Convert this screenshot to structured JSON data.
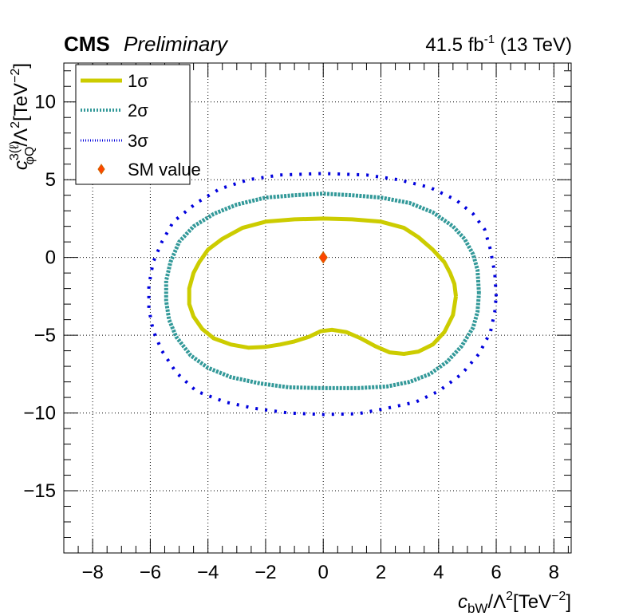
{
  "header": {
    "experiment": "CMS",
    "status": "Preliminary",
    "lumi_value": "41.5 fb",
    "lumi_exp": "-1",
    "energy": " (13 TeV)"
  },
  "axes": {
    "x": {
      "c": "c",
      "sub": "bW",
      "mid": "/Λ",
      "sup2": "2",
      "unit": "[TeV",
      "unit_exp": "−2",
      "close": "]"
    },
    "y": {
      "c": "c",
      "sup": "3(ℓ)",
      "sub": "φQ",
      "mid": "/Λ",
      "sup2": "2",
      "unit": "[TeV",
      "unit_exp": "−2",
      "close": "]"
    }
  },
  "legend": {
    "entries": [
      {
        "label": "1σ",
        "color": "#cccc00"
      },
      {
        "label": "2σ",
        "color": "#339999"
      },
      {
        "label": "3σ",
        "color": "#0000dd"
      },
      {
        "label": "SM value",
        "color": "#ff4400"
      }
    ]
  },
  "chart_data": {
    "type": "scatter",
    "xlim": [
      -9,
      8.6
    ],
    "ylim": [
      -19,
      12.5
    ],
    "grid": true,
    "legend_position": "top-left",
    "x_ticks": [
      {
        "value": -8,
        "label": "−8"
      },
      {
        "value": -6,
        "label": "−6"
      },
      {
        "value": -4,
        "label": "−4"
      },
      {
        "value": -2,
        "label": "−2"
      },
      {
        "value": 0,
        "label": "0"
      },
      {
        "value": 2,
        "label": "2"
      },
      {
        "value": 4,
        "label": "4"
      },
      {
        "value": 6,
        "label": "6"
      },
      {
        "value": 8,
        "label": "8"
      }
    ],
    "y_ticks": [
      {
        "value": 10,
        "label": "10"
      },
      {
        "value": 5,
        "label": "5"
      },
      {
        "value": 0,
        "label": "0"
      },
      {
        "value": -5,
        "label": "−5"
      },
      {
        "value": -10,
        "label": "−10"
      },
      {
        "value": -15,
        "label": "−15"
      }
    ],
    "series": [
      {
        "name": "1σ",
        "color": "#cccc00",
        "style": "solid",
        "points": [
          [
            4.6,
            -2.5
          ],
          [
            4.55,
            -1.7
          ],
          [
            4.4,
            -1.0
          ],
          [
            4.2,
            -0.3
          ],
          [
            3.8,
            0.5
          ],
          [
            3.3,
            1.3
          ],
          [
            2.8,
            1.9
          ],
          [
            2.0,
            2.3
          ],
          [
            1.0,
            2.45
          ],
          [
            0.0,
            2.5
          ],
          [
            -1.0,
            2.45
          ],
          [
            -2.0,
            2.3
          ],
          [
            -2.8,
            1.9
          ],
          [
            -3.5,
            1.2
          ],
          [
            -4.0,
            0.5
          ],
          [
            -4.3,
            -0.3
          ],
          [
            -4.5,
            -1.0
          ],
          [
            -4.65,
            -2.0
          ],
          [
            -4.65,
            -3.0
          ],
          [
            -4.5,
            -3.8
          ],
          [
            -4.2,
            -4.6
          ],
          [
            -3.8,
            -5.2
          ],
          [
            -3.2,
            -5.6
          ],
          [
            -2.6,
            -5.8
          ],
          [
            -2.0,
            -5.75
          ],
          [
            -1.5,
            -5.6
          ],
          [
            -1.0,
            -5.4
          ],
          [
            -0.5,
            -5.1
          ],
          [
            -0.1,
            -4.75
          ],
          [
            0.3,
            -4.65
          ],
          [
            0.8,
            -4.8
          ],
          [
            1.3,
            -5.2
          ],
          [
            1.8,
            -5.7
          ],
          [
            2.3,
            -6.1
          ],
          [
            2.8,
            -6.2
          ],
          [
            3.3,
            -6.05
          ],
          [
            3.8,
            -5.6
          ],
          [
            4.2,
            -4.8
          ],
          [
            4.5,
            -3.7
          ],
          [
            4.6,
            -2.5
          ]
        ]
      },
      {
        "name": "2σ",
        "color": "#339999",
        "style": "dotted",
        "points": [
          [
            5.4,
            -2.3
          ],
          [
            5.35,
            -0.8
          ],
          [
            5.2,
            0.2
          ],
          [
            4.9,
            1.2
          ],
          [
            4.5,
            2.0
          ],
          [
            3.8,
            2.9
          ],
          [
            3.0,
            3.5
          ],
          [
            2.0,
            3.85
          ],
          [
            1.0,
            4.0
          ],
          [
            0.0,
            4.1
          ],
          [
            -1.0,
            4.0
          ],
          [
            -2.0,
            3.85
          ],
          [
            -3.0,
            3.4
          ],
          [
            -3.8,
            2.8
          ],
          [
            -4.5,
            2.0
          ],
          [
            -5.0,
            1.0
          ],
          [
            -5.3,
            -0.3
          ],
          [
            -5.45,
            -1.5
          ],
          [
            -5.45,
            -2.8
          ],
          [
            -5.35,
            -4.0
          ],
          [
            -5.1,
            -5.1
          ],
          [
            -4.6,
            -6.3
          ],
          [
            -4.0,
            -7.1
          ],
          [
            -3.2,
            -7.7
          ],
          [
            -2.2,
            -8.1
          ],
          [
            -1.2,
            -8.35
          ],
          [
            0.0,
            -8.4
          ],
          [
            1.2,
            -8.4
          ],
          [
            2.2,
            -8.3
          ],
          [
            3.0,
            -8.0
          ],
          [
            3.7,
            -7.5
          ],
          [
            4.3,
            -6.7
          ],
          [
            4.8,
            -5.7
          ],
          [
            5.2,
            -4.5
          ],
          [
            5.35,
            -3.5
          ],
          [
            5.4,
            -2.3
          ]
        ]
      },
      {
        "name": "3σ",
        "color": "#0000dd",
        "style": "sparse-dotted",
        "points": [
          [
            6.0,
            -2.5
          ],
          [
            5.95,
            -1.0
          ],
          [
            5.8,
            0.5
          ],
          [
            5.6,
            1.8
          ],
          [
            5.2,
            2.8
          ],
          [
            4.6,
            3.7
          ],
          [
            3.7,
            4.5
          ],
          [
            2.6,
            5.0
          ],
          [
            1.5,
            5.3
          ],
          [
            0.0,
            5.4
          ],
          [
            -1.5,
            5.3
          ],
          [
            -2.6,
            5.0
          ],
          [
            -3.6,
            4.4
          ],
          [
            -4.4,
            3.5
          ],
          [
            -5.2,
            2.3
          ],
          [
            -5.6,
            1.0
          ],
          [
            -5.9,
            -0.3
          ],
          [
            -6.05,
            -1.8
          ],
          [
            -6.05,
            -3.3
          ],
          [
            -5.9,
            -4.7
          ],
          [
            -5.6,
            -6.0
          ],
          [
            -5.1,
            -7.4
          ],
          [
            -4.4,
            -8.6
          ],
          [
            -3.4,
            -9.3
          ],
          [
            -2.4,
            -9.7
          ],
          [
            -1.2,
            -10.0
          ],
          [
            0.0,
            -10.1
          ],
          [
            1.2,
            -10.05
          ],
          [
            2.2,
            -9.7
          ],
          [
            3.2,
            -9.3
          ],
          [
            4.0,
            -8.6
          ],
          [
            4.8,
            -7.5
          ],
          [
            5.4,
            -6.2
          ],
          [
            5.8,
            -4.8
          ],
          [
            5.95,
            -3.5
          ],
          [
            6.0,
            -2.5
          ]
        ]
      }
    ],
    "sm_point": {
      "name": "SM value",
      "x": 0,
      "y": 0,
      "color": "#ff4400"
    }
  }
}
